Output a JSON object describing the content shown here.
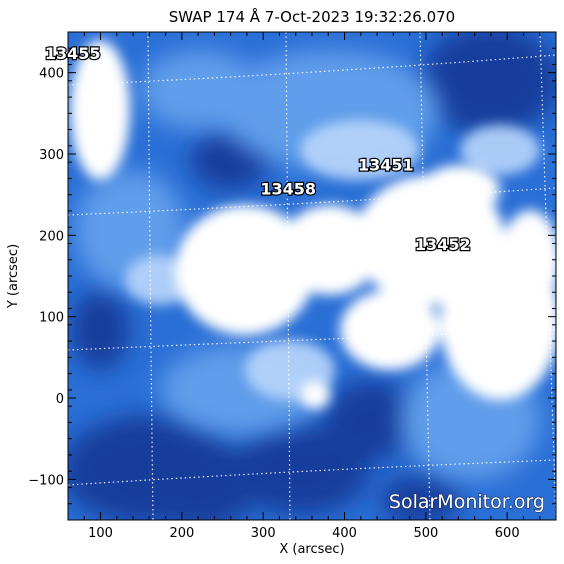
{
  "image": {
    "title": "SWAP 174 Å  7-Oct-2023 19:32:26.070",
    "xlabel": "X (arcsec)",
    "ylabel": "Y (arcsec)",
    "xlim": [
      60,
      660
    ],
    "ylim": [
      -150,
      450
    ],
    "xticks": [
      100,
      200,
      300,
      400,
      500,
      600
    ],
    "yticks": [
      -100,
      0,
      100,
      200,
      300,
      400
    ],
    "xtick_labels": [
      "100",
      "200",
      "300",
      "400",
      "500",
      "600"
    ],
    "ytick_labels": [
      "−100",
      "0",
      "100",
      "200",
      "300",
      "400"
    ],
    "colors": {
      "background": "#ffffff",
      "deep": "#123a9a",
      "mid": "#2a6fd6",
      "bright": "#ffffff",
      "axis": "#000000"
    }
  },
  "regions": [
    {
      "label": "13455",
      "x": 100,
      "y": 417
    },
    {
      "label": "13458",
      "x": 365,
      "y": 250
    },
    {
      "label": "13451",
      "x": 485,
      "y": 280
    },
    {
      "label": "13452",
      "x": 555,
      "y": 182
    }
  ],
  "watermark": "SolarMonitor.org"
}
